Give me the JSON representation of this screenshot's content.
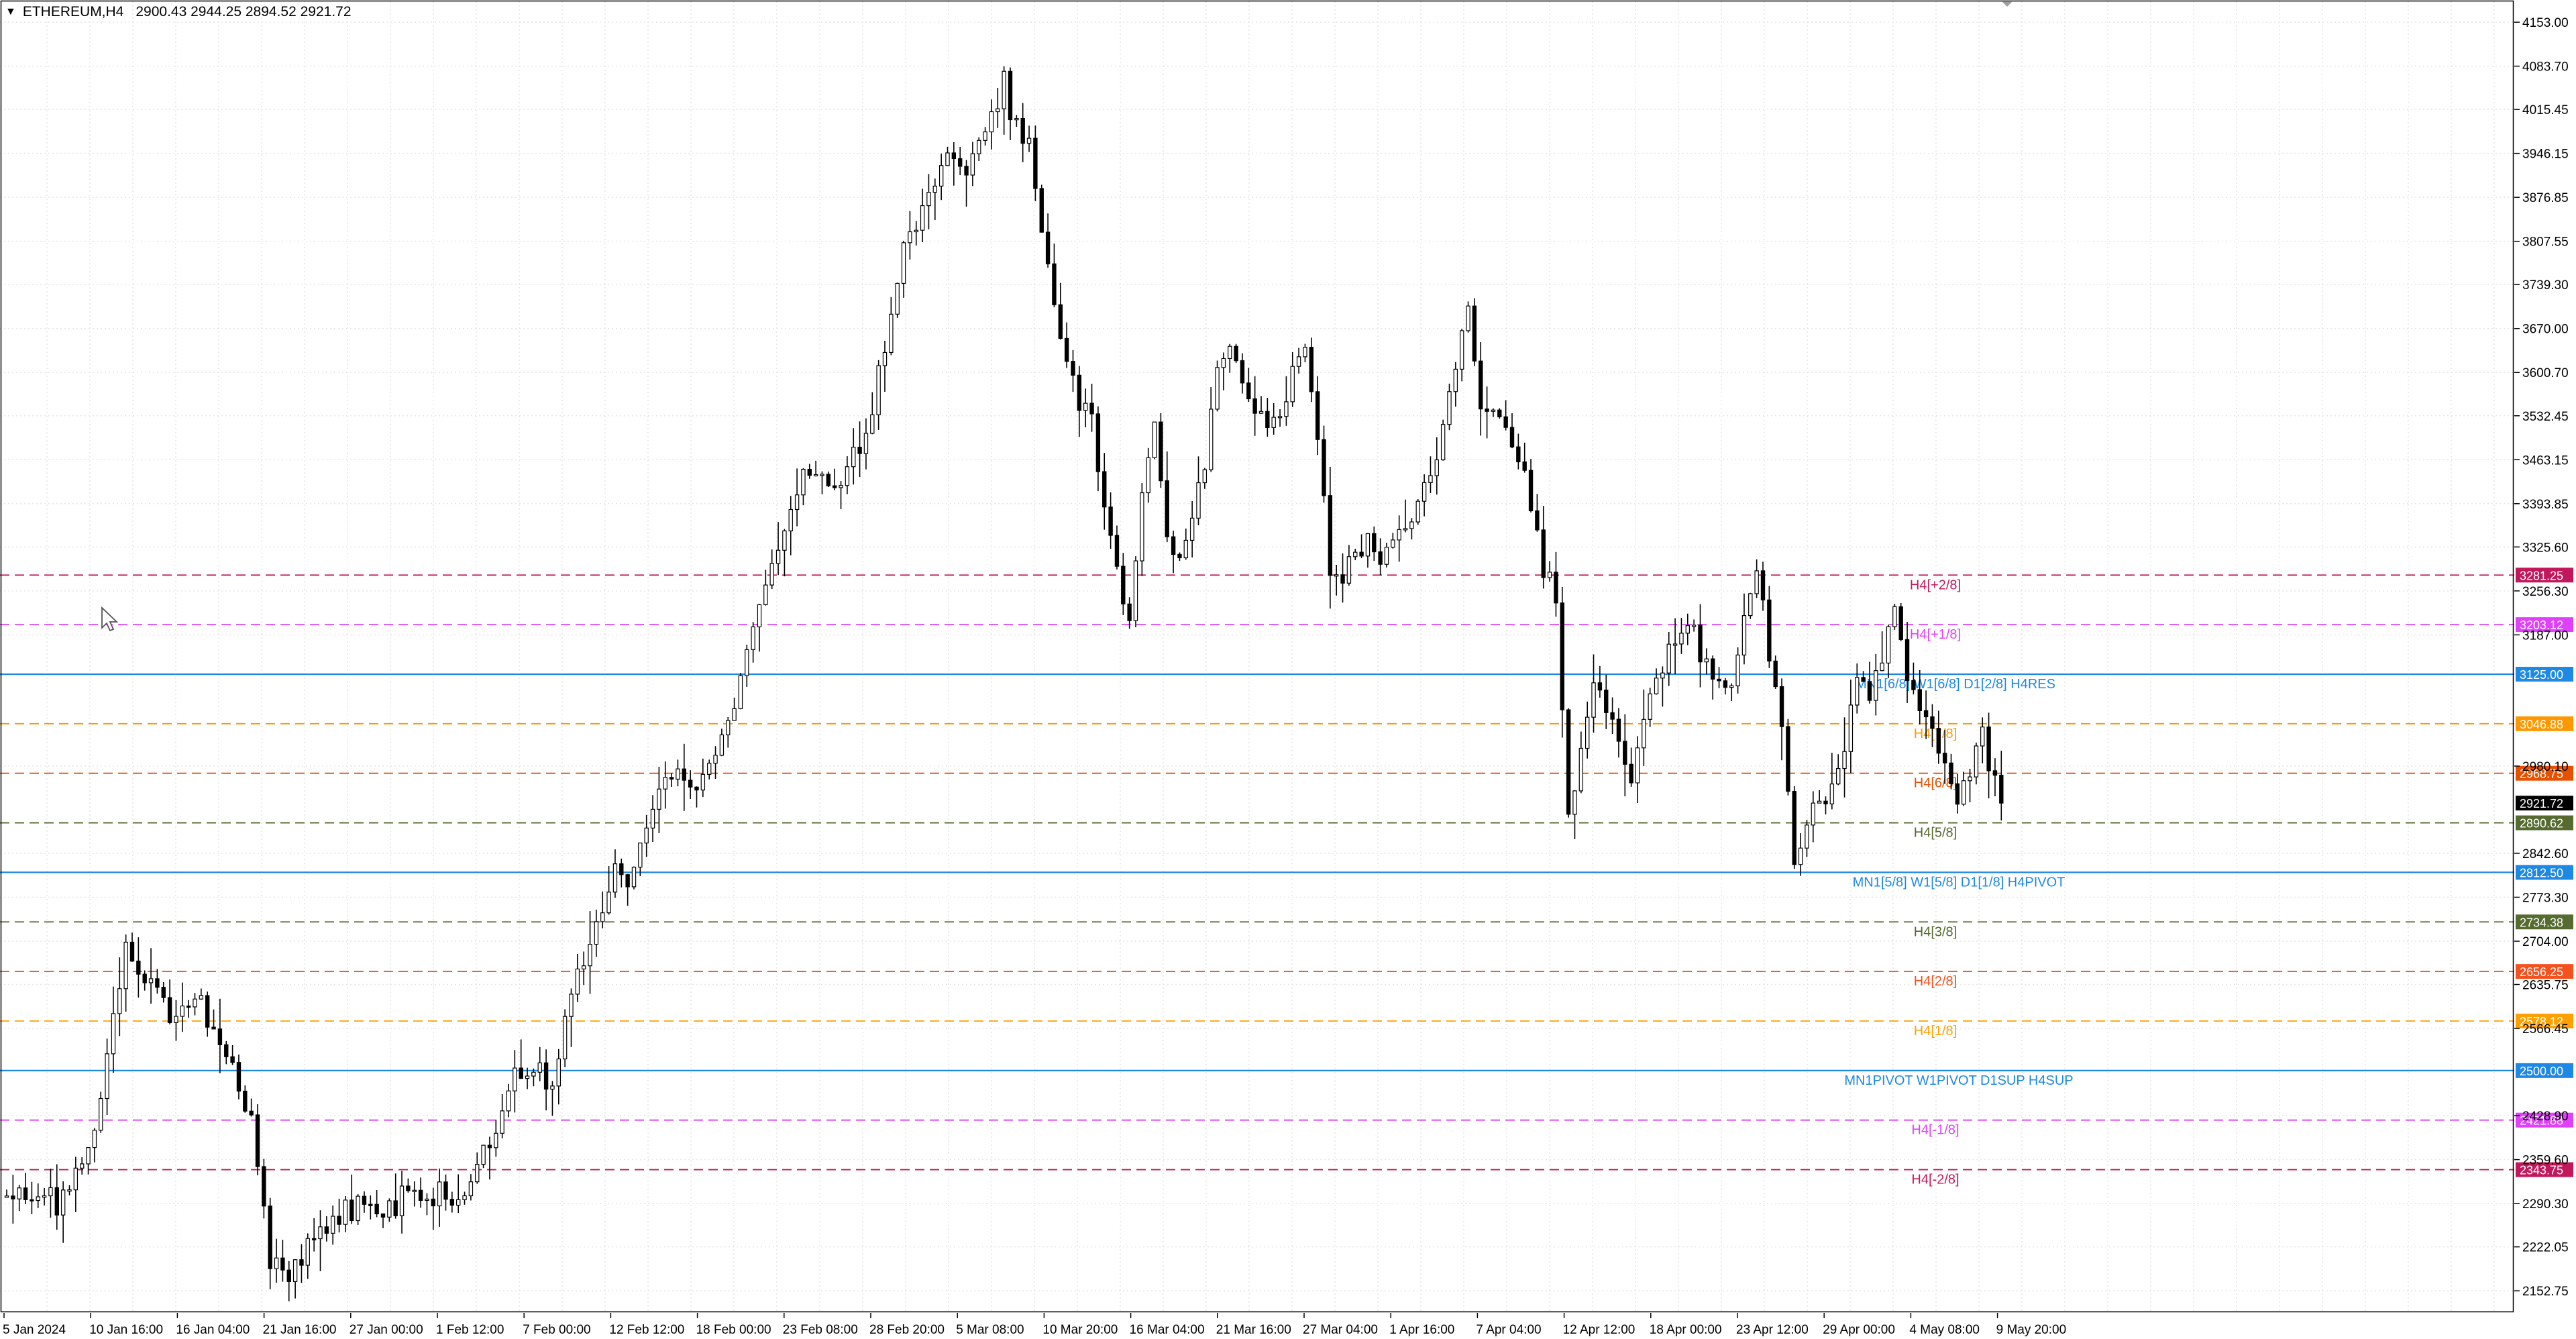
{
  "header": {
    "menu_icon": "triangle-down-icon",
    "symbol": "ETHEREUM,H4",
    "ohlc": "2900.43 2944.25 2894.52 2921.72"
  },
  "colors": {
    "background": "#ffffff",
    "grid": "#e6e6e6",
    "candle": "#000000",
    "axis": "#000000",
    "main_level": "#1e88e5",
    "plus2_8": "#c2185b",
    "plus1_8": "#e040fb",
    "level_7_8": "#ff9800",
    "level_6_8": "#e65100",
    "level_5_8": "#556b2f",
    "level_3_8": "#556b2f",
    "level_2_8": "#f4511e",
    "level_1_8": "#ffa000",
    "minus1_8": "#e040fb",
    "minus2_8": "#c2185b"
  },
  "chart_data": {
    "type": "candlestick",
    "title": "ETHEREUM,H4",
    "ohlc_current": {
      "open": 2900.43,
      "high": 2944.25,
      "low": 2894.52,
      "close": 2921.72
    },
    "x_labels": [
      "5 Jan 2024",
      "10 Jan 16:00",
      "16 Jan 04:00",
      "21 Jan 16:00",
      "27 Jan 00:00",
      "1 Feb 12:00",
      "7 Feb 00:00",
      "12 Feb 12:00",
      "18 Feb 00:00",
      "23 Feb 08:00",
      "28 Feb 20:00",
      "5 Mar 08:00",
      "10 Mar 20:00",
      "16 Mar 04:00",
      "21 Mar 16:00",
      "27 Mar 04:00",
      "1 Apr 16:00",
      "7 Apr 04:00",
      "12 Apr 12:00",
      "18 Apr 00:00",
      "23 Apr 12:00",
      "29 Apr 00:00",
      "4 May 08:00",
      "9 May 20:00"
    ],
    "y_ticks": [
      "4153.00",
      "4083.70",
      "4015.45",
      "3946.15",
      "3876.85",
      "3807.55",
      "3739.30",
      "3670.00",
      "3600.70",
      "3532.45",
      "3463.15",
      "3393.85",
      "3325.60",
      "3256.30",
      "3187.00",
      "2980.10",
      "2842.60",
      "2773.30",
      "2704.00",
      "2635.75",
      "2566.45",
      "2428.90",
      "2359.60",
      "2290.30",
      "2222.05",
      "2152.75"
    ],
    "y_range": [
      2118,
      4188
    ],
    "price_path": [
      [
        0,
        2302
      ],
      [
        4,
        2310
      ],
      [
        8,
        2285
      ],
      [
        11,
        2330
      ],
      [
        14,
        2415
      ],
      [
        17,
        2590
      ],
      [
        19,
        2720
      ],
      [
        21,
        2640
      ],
      [
        24,
        2620
      ],
      [
        27,
        2580
      ],
      [
        30,
        2620
      ],
      [
        33,
        2555
      ],
      [
        36,
        2505
      ],
      [
        39,
        2420
      ],
      [
        42,
        2195
      ],
      [
        45,
        2185
      ],
      [
        48,
        2210
      ],
      [
        51,
        2250
      ],
      [
        54,
        2275
      ],
      [
        57,
        2300
      ],
      [
        60,
        2260
      ],
      [
        63,
        2320
      ],
      [
        66,
        2300
      ],
      [
        69,
        2305
      ],
      [
        72,
        2290
      ],
      [
        75,
        2355
      ],
      [
        78,
        2425
      ],
      [
        81,
        2490
      ],
      [
        84,
        2505
      ],
      [
        87,
        2485
      ],
      [
        89,
        2580
      ],
      [
        91,
        2640
      ],
      [
        93,
        2700
      ],
      [
        95,
        2760
      ],
      [
        97,
        2810
      ],
      [
        99,
        2800
      ],
      [
        101,
        2850
      ],
      [
        103,
        2920
      ],
      [
        105,
        2960
      ],
      [
        107,
        2980
      ],
      [
        109,
        2930
      ],
      [
        111,
        2970
      ],
      [
        113,
        3020
      ],
      [
        115,
        3050
      ],
      [
        117,
        3120
      ],
      [
        119,
        3210
      ],
      [
        121,
        3270
      ],
      [
        123,
        3320
      ],
      [
        125,
        3400
      ],
      [
        127,
        3450
      ],
      [
        129,
        3440
      ],
      [
        131,
        3410
      ],
      [
        133,
        3420
      ],
      [
        135,
        3480
      ],
      [
        137,
        3510
      ],
      [
        139,
        3600
      ],
      [
        141,
        3700
      ],
      [
        143,
        3800
      ],
      [
        145,
        3820
      ],
      [
        147,
        3880
      ],
      [
        149,
        3920
      ],
      [
        151,
        3960
      ],
      [
        153,
        3910
      ],
      [
        155,
        3960
      ],
      [
        157,
        4020
      ],
      [
        159,
        4060
      ],
      [
        161,
        3990
      ],
      [
        163,
        3960
      ],
      [
        165,
        3820
      ],
      [
        167,
        3690
      ],
      [
        169,
        3620
      ],
      [
        171,
        3560
      ],
      [
        173,
        3520
      ],
      [
        175,
        3380
      ],
      [
        177,
        3290
      ],
      [
        179,
        3210
      ],
      [
        181,
        3400
      ],
      [
        183,
        3510
      ],
      [
        185,
        3360
      ],
      [
        187,
        3300
      ],
      [
        189,
        3380
      ],
      [
        191,
        3440
      ],
      [
        193,
        3620
      ],
      [
        195,
        3650
      ],
      [
        197,
        3580
      ],
      [
        199,
        3550
      ],
      [
        201,
        3530
      ],
      [
        203,
        3520
      ],
      [
        205,
        3620
      ],
      [
        207,
        3650
      ],
      [
        209,
        3500
      ],
      [
        211,
        3300
      ],
      [
        213,
        3280
      ],
      [
        215,
        3320
      ],
      [
        217,
        3330
      ],
      [
        219,
        3300
      ],
      [
        221,
        3330
      ],
      [
        223,
        3370
      ],
      [
        225,
        3400
      ],
      [
        227,
        3430
      ],
      [
        229,
        3520
      ],
      [
        231,
        3620
      ],
      [
        233,
        3710
      ],
      [
        235,
        3560
      ],
      [
        237,
        3550
      ],
      [
        239,
        3520
      ],
      [
        241,
        3470
      ],
      [
        243,
        3380
      ],
      [
        245,
        3300
      ],
      [
        247,
        3240
      ],
      [
        249,
        2900
      ],
      [
        251,
        3010
      ],
      [
        253,
        3100
      ],
      [
        255,
        3080
      ],
      [
        257,
        3000
      ],
      [
        259,
        2950
      ],
      [
        261,
        3060
      ],
      [
        263,
        3120
      ],
      [
        265,
        3160
      ],
      [
        267,
        3190
      ],
      [
        269,
        3200
      ],
      [
        271,
        3140
      ],
      [
        273,
        3120
      ],
      [
        275,
        3100
      ],
      [
        277,
        3220
      ],
      [
        279,
        3300
      ],
      [
        281,
        3140
      ],
      [
        283,
        3050
      ],
      [
        285,
        2840
      ],
      [
        287,
        2880
      ],
      [
        289,
        2940
      ],
      [
        291,
        2930
      ],
      [
        293,
        3010
      ],
      [
        295,
        3120
      ],
      [
        297,
        3090
      ],
      [
        299,
        3170
      ],
      [
        301,
        3220
      ],
      [
        303,
        3120
      ],
      [
        305,
        3080
      ],
      [
        307,
        3030
      ],
      [
        309,
        2970
      ],
      [
        311,
        2920
      ],
      [
        313,
        2980
      ],
      [
        315,
        3030
      ],
      [
        317,
        2945
      ],
      [
        318,
        2921.72
      ]
    ],
    "levels": [
      {
        "id": "h4-plus2-8",
        "value": 3281.25,
        "label": "H4[+2/8]",
        "price_text": "3281.25",
        "style": "dashed",
        "color": "#c2185b"
      },
      {
        "id": "h4-plus1-8",
        "value": 3203.12,
        "label": "H4[+1/8]",
        "price_text": "3203.12",
        "style": "dashed",
        "color": "#e040fb"
      },
      {
        "id": "h4-res",
        "value": 3125.0,
        "label": "MN1[6/8] W1[6/8] D1[2/8] H4RES",
        "price_text": "3125.00",
        "style": "solid",
        "color": "#1e88e5"
      },
      {
        "id": "h4-7-8",
        "value": 3046.88,
        "label": "H4[7/8]",
        "price_text": "3046.88",
        "style": "dashed",
        "color": "#ff9800"
      },
      {
        "id": "h4-6-8",
        "value": 2968.75,
        "label": "H4[6/8]",
        "price_text": "2968.75",
        "style": "dashed",
        "color": "#e65100"
      },
      {
        "id": "h4-5-8",
        "value": 2890.62,
        "label": "H4[5/8]",
        "price_text": "2890.62",
        "style": "dashed",
        "color": "#556b2f"
      },
      {
        "id": "h4-pivot",
        "value": 2812.5,
        "label": "MN1[5/8] W1[5/8] D1[1/8] H4PIVOT",
        "price_text": "2812.50",
        "style": "solid",
        "color": "#1e88e5"
      },
      {
        "id": "h4-3-8",
        "value": 2734.38,
        "label": "H4[3/8]",
        "price_text": "2734.38",
        "style": "dashed",
        "color": "#556b2f"
      },
      {
        "id": "h4-2-8",
        "value": 2656.25,
        "label": "H4[2/8]",
        "price_text": "2656.25",
        "style": "dashed",
        "color": "#f4511e"
      },
      {
        "id": "h4-1-8",
        "value": 2578.12,
        "label": "H4[1/8]",
        "price_text": "2578.12",
        "style": "dashed",
        "color": "#ffa000"
      },
      {
        "id": "h4-sup",
        "value": 2500.0,
        "label": "MN1PIVOT W1PIVOT D1SUP H4SUP",
        "price_text": "2500.00",
        "style": "solid",
        "color": "#1e88e5"
      },
      {
        "id": "h4-minus1-8",
        "value": 2421.88,
        "label": "H4[-1/8]",
        "price_text": "2421.88",
        "style": "dashed",
        "color": "#e040fb"
      },
      {
        "id": "h4-minus2-8",
        "value": 2343.75,
        "label": "H4[-2/8]",
        "price_text": "2343.75",
        "style": "dashed",
        "color": "#c2185b"
      }
    ],
    "current_price": {
      "value": 2921.72,
      "text": "2921.72"
    },
    "grid": true,
    "cursor_icon": "mouse-pointer-icon"
  }
}
